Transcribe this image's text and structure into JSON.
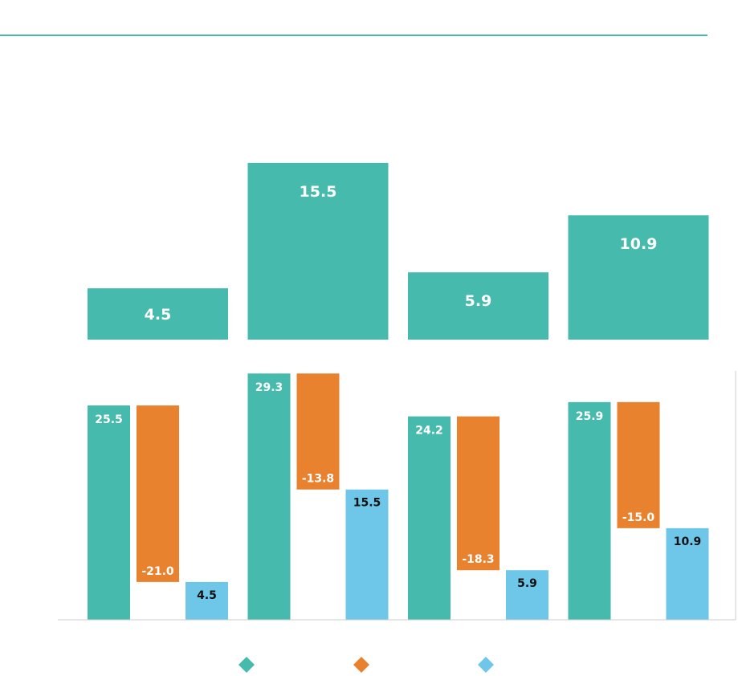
{
  "colors": {
    "teal": "#47BAAE",
    "orange": "#E8822F",
    "light_blue": "#6EC6E9",
    "rule": "#47BAAE",
    "axis": "#cccccc",
    "dark_text": "#111111",
    "white_text": "#ffffff"
  },
  "chart_data": [
    {
      "type": "bar",
      "title": "",
      "categories": [
        "",
        "",
        "",
        ""
      ],
      "series": [
        {
          "name": "",
          "color_key": "teal",
          "values": [
            4.5,
            15.5,
            5.9,
            10.9
          ]
        }
      ],
      "data_labels": [
        "4.5",
        "15.5",
        "5.9",
        "10.9"
      ],
      "ylim": [
        0,
        17
      ],
      "grid": false
    },
    {
      "type": "bar",
      "title": "",
      "categories": [
        "",
        "",
        "",
        ""
      ],
      "series": [
        {
          "name": "",
          "color_key": "teal",
          "values": [
            25.5,
            29.3,
            24.2,
            25.9
          ],
          "labels": [
            "25.5",
            "29.3",
            "24.2",
            "25.9"
          ]
        },
        {
          "name": "",
          "color_key": "orange",
          "values": [
            -21.0,
            -13.8,
            -18.3,
            -15.0
          ],
          "labels": [
            "-21.0",
            "-13.8",
            "-18.3",
            "-15.0"
          ]
        },
        {
          "name": "",
          "color_key": "light_blue",
          "values": [
            4.5,
            15.5,
            5.9,
            10.9
          ],
          "labels": [
            "4.5",
            "15.5",
            "5.9",
            "10.9"
          ]
        }
      ],
      "waterfall": true,
      "ylim": [
        0,
        31
      ],
      "grid": false,
      "legend": {
        "placement": "bottom-center",
        "entries": [
          "",
          "",
          ""
        ],
        "marker": "diamond"
      }
    }
  ]
}
